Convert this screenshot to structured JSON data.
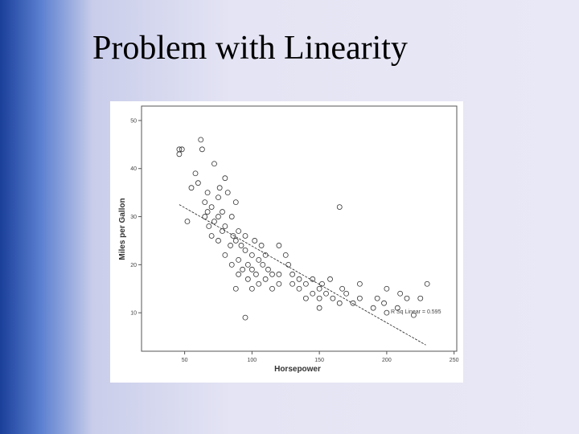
{
  "title": "Problem with Linearity",
  "chart_data": {
    "type": "scatter",
    "x_label": "Horsepower",
    "y_label": "Miles per Gallon",
    "annotation": "R Sq Linear = 0.595",
    "xlim": [
      18,
      252
    ],
    "ylim": [
      2,
      53
    ],
    "xticks": [
      50,
      100,
      150,
      200,
      250
    ],
    "yticks": [
      10,
      20,
      30,
      40,
      50
    ],
    "color": "#333333",
    "fit_line": {
      "x": [
        46,
        229
      ],
      "values": [
        32.5,
        3.3
      ]
    },
    "x": [
      46,
      46,
      48,
      52,
      55,
      58,
      60,
      62,
      63,
      65,
      65,
      67,
      67,
      68,
      70,
      70,
      72,
      72,
      75,
      75,
      75,
      76,
      78,
      78,
      80,
      80,
      82,
      84,
      85,
      85,
      86,
      88,
      88,
      90,
      90,
      90,
      92,
      93,
      95,
      95,
      97,
      97,
      100,
      100,
      100,
      102,
      103,
      105,
      105,
      107,
      108,
      110,
      110,
      112,
      115,
      115,
      120,
      120,
      120,
      125,
      127,
      130,
      130,
      135,
      135,
      140,
      140,
      145,
      145,
      150,
      150,
      150,
      152,
      155,
      158,
      160,
      165,
      167,
      170,
      175,
      180,
      180,
      190,
      193,
      198,
      200,
      200,
      208,
      210,
      215,
      220,
      225,
      230,
      165,
      95,
      88,
      80
    ],
    "values": [
      44,
      43,
      44,
      29,
      36,
      39,
      37,
      46,
      44,
      33,
      30,
      31,
      35,
      28,
      32,
      26,
      41,
      29,
      34,
      30,
      25,
      36,
      31,
      27,
      28,
      22,
      35,
      24,
      30,
      20,
      26,
      25,
      33,
      27,
      21,
      18,
      24,
      19,
      23,
      26,
      20,
      17,
      19,
      22,
      15,
      25,
      18,
      21,
      16,
      24,
      20,
      22,
      17,
      19,
      18,
      15,
      24,
      18,
      16,
      22,
      20,
      16,
      18,
      15,
      17,
      13,
      16,
      17,
      14,
      15,
      13,
      11,
      16,
      14,
      17,
      13,
      12,
      15,
      14,
      12,
      16,
      13,
      11,
      13,
      12,
      15,
      10,
      11,
      14,
      13,
      9.5,
      13,
      16,
      32,
      9,
      15,
      38
    ]
  }
}
